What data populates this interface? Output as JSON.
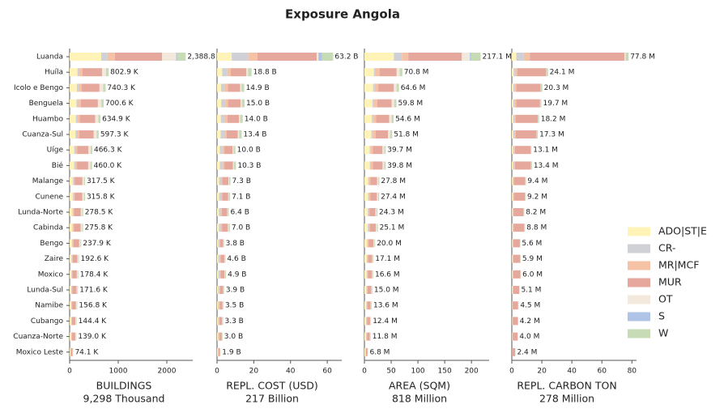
{
  "title": "Exposure Angola",
  "chart_data": [
    {
      "type": "barh",
      "xlabel": "BUILDINGS",
      "subtitle": "9,298 Thousand",
      "categories": [
        "Luanda",
        "Huíla",
        "Icolo e Bengo",
        "Benguela",
        "Huambo",
        "Cuanza-Sul",
        "Uíge",
        "Bié",
        "Malange",
        "Cunene",
        "Lunda-Norte",
        "Cabinda",
        "Bengo",
        "Zaire",
        "Moxico",
        "Lunda-Sul",
        "Namibe",
        "Cubango",
        "Cuanza-Norte",
        "Moxico Leste"
      ],
      "xlim": [
        0,
        2500
      ],
      "xticks": [
        0,
        1000,
        2000
      ],
      "series": [
        {
          "name": "ADO|ST|E",
          "color": "#fff3b8",
          "values": [
            650,
            160.6,
            148.1,
            140.1,
            127.0,
            119.5,
            93.3,
            92,
            63.5,
            63.2,
            55.7,
            55.2,
            47.6,
            38.5,
            35.7,
            34.3,
            31.4,
            28.9,
            27.8,
            14.8
          ]
        },
        {
          "name": "CR-",
          "color": "#d0d1d6",
          "values": [
            130,
            40.1,
            37.0,
            35.0,
            31.7,
            29.9,
            23.3,
            23,
            15.9,
            15.8,
            13.9,
            13.8,
            11.9,
            9.6,
            8.9,
            8.6,
            7.8,
            7.2,
            7.0,
            3.7
          ]
        },
        {
          "name": "MR|MCF",
          "color": "#f5c2a6",
          "values": [
            150,
            64.2,
            59.2,
            56.0,
            50.8,
            47.8,
            37.3,
            36.8,
            25.4,
            25.3,
            22.3,
            22.1,
            19.0,
            15.4,
            14.3,
            13.7,
            12.5,
            11.6,
            11.1,
            5.9
          ]
        },
        {
          "name": "MUR",
          "color": "#e6a79c",
          "values": [
            970,
            401.5,
            370.2,
            350.3,
            317.5,
            298.6,
            233.2,
            230,
            158.7,
            157.9,
            139.3,
            137.9,
            118.9,
            96.3,
            89.2,
            85.8,
            78.4,
            72.2,
            69.5,
            37.1
          ]
        },
        {
          "name": "OT",
          "color": "#f2e9dc",
          "values": [
            290,
            80.3,
            74.0,
            70.1,
            63.5,
            59.7,
            46.6,
            46,
            31.8,
            31.6,
            27.8,
            27.6,
            23.8,
            19.3,
            17.8,
            17.2,
            15.7,
            14.4,
            13.9,
            7.4
          ]
        },
        {
          "name": "S",
          "color": "#aec3e6",
          "values": [
            18.8,
            0,
            0,
            0,
            0,
            0,
            0,
            0,
            0,
            0,
            0,
            0,
            0,
            0,
            0,
            0,
            0,
            0,
            0,
            0
          ]
        },
        {
          "name": "W",
          "color": "#c6dbb6",
          "values": [
            180,
            56.2,
            51.8,
            49.1,
            44.4,
            41.8,
            32.6,
            32.2,
            22.2,
            22.0,
            19.5,
            19.2,
            16.7,
            13.5,
            12.5,
            12.0,
            11.0,
            10.1,
            9.7,
            5.2
          ]
        }
      ],
      "totals": [
        2388.8,
        802.9,
        740.3,
        700.6,
        634.9,
        597.3,
        466.3,
        460.0,
        317.5,
        315.8,
        278.5,
        275.8,
        237.9,
        192.6,
        178.4,
        171.6,
        156.8,
        144.4,
        139.0,
        74.1
      ],
      "total_labels": [
        "2,388.8 K",
        "802.9 K",
        "740.3 K",
        "700.6 K",
        "634.9 K",
        "597.3 K",
        "466.3 K",
        "460.0 K",
        "317.5 K",
        "315.8 K",
        "278.5 K",
        "275.8 K",
        "237.9 K",
        "192.6 K",
        "178.4 K",
        "171.6 K",
        "156.8 K",
        "144.4 K",
        "139.0 K",
        "74.1 K"
      ]
    },
    {
      "type": "barh",
      "xlabel": "REPL. COST (USD)",
      "subtitle": "217 Billion",
      "xlim": [
        0,
        67
      ],
      "xticks": [
        0,
        20,
        40,
        60
      ],
      "series": [
        {
          "color": "#fff3b8",
          "values": [
            8,
            2.8,
            2.2,
            2.3,
            2.1,
            2.0,
            1.5,
            1.5,
            1.1,
            1.1,
            1.0,
            1.0,
            0.6,
            0.7,
            0.7,
            0.6,
            0.5,
            0.5,
            0.5,
            0.3
          ]
        },
        {
          "color": "#d0d1d6",
          "values": [
            9,
            2.8,
            2.2,
            2.2,
            2.1,
            2.0,
            1.5,
            1.5,
            1.1,
            1.1,
            1.0,
            1.0,
            0.6,
            0.7,
            0.7,
            0.6,
            0.5,
            0.5,
            0.4,
            0.3
          ]
        },
        {
          "color": "#f5c2a6",
          "values": [
            5,
            1.9,
            1.5,
            1.5,
            1.4,
            1.3,
            1.0,
            1.0,
            0.7,
            0.7,
            0.6,
            0.7,
            0.4,
            0.5,
            0.5,
            0.4,
            0.4,
            0.3,
            0.3,
            0.2
          ]
        },
        {
          "color": "#e6a79c",
          "values": [
            32.2,
            8.5,
            6.7,
            6.8,
            6.3,
            6.0,
            4.5,
            4.7,
            3.3,
            3.2,
            2.9,
            3.2,
            1.7,
            2.1,
            2.2,
            1.8,
            1.6,
            1.5,
            1.4,
            0.8
          ]
        },
        {
          "color": "#f2e9dc",
          "values": [
            1,
            0.9,
            0.7,
            0.7,
            0.7,
            0.7,
            0.5,
            0.5,
            0.4,
            0.3,
            0.3,
            0.4,
            0.2,
            0.2,
            0.3,
            0.2,
            0.2,
            0.2,
            0.1,
            0.1
          ]
        },
        {
          "color": "#aec3e6",
          "values": [
            2,
            0,
            0,
            0,
            0,
            0,
            0,
            0,
            0,
            0,
            0,
            0,
            0,
            0,
            0,
            0,
            0,
            0,
            0,
            0
          ]
        },
        {
          "color": "#c6dbb6",
          "values": [
            6,
            1.9,
            1.5,
            1.5,
            1.4,
            1.4,
            1.0,
            1.1,
            0.7,
            0.7,
            0.6,
            0.7,
            0.3,
            0.4,
            0.5,
            0.3,
            0.3,
            0.3,
            0.3,
            0.2
          ]
        }
      ],
      "totals": [
        63.2,
        18.8,
        14.9,
        15.0,
        14.0,
        13.4,
        10.0,
        10.3,
        7.3,
        7.1,
        6.4,
        7.0,
        3.8,
        4.6,
        4.9,
        3.9,
        3.5,
        3.3,
        3.0,
        1.9
      ],
      "total_labels": [
        "63.2 B",
        "18.8 B",
        "14.9 B",
        "15.0 B",
        "14.0 B",
        "13.4 B",
        "10.0 B",
        "10.3 B",
        "7.3 B",
        "7.1 B",
        "6.4 B",
        "7.0 B",
        "3.8 B",
        "4.6 B",
        "4.9 B",
        "3.9 B",
        "3.5 B",
        "3.3 B",
        "3.0 B",
        "1.9 B"
      ]
    },
    {
      "type": "barh",
      "xlabel": "AREA (SQM)",
      "subtitle": "818 Million",
      "xlim": [
        0,
        230
      ],
      "xticks": [
        0,
        50,
        100,
        150,
        200
      ],
      "series": [
        {
          "color": "#fff3b8",
          "values": [
            55,
            17.7,
            16.2,
            15.0,
            13.7,
            13.0,
            9.9,
            10.0,
            7.0,
            6.9,
            6.1,
            6.3,
            5,
            4.3,
            4.2,
            3.8,
            3.4,
            3.1,
            3.0,
            1.7
          ]
        },
        {
          "color": "#d0d1d6",
          "values": [
            15,
            3.5,
            3.2,
            3.0,
            2.7,
            2.6,
            2.0,
            2.0,
            1.4,
            1.4,
            1.2,
            1.3,
            1,
            0.9,
            0.8,
            0.7,
            0.7,
            0.6,
            0.6,
            0.3
          ]
        },
        {
          "color": "#f5c2a6",
          "values": [
            12,
            7.1,
            6.5,
            6.0,
            5.5,
            5.2,
            4.0,
            4.0,
            2.8,
            2.7,
            2.4,
            2.5,
            2,
            1.7,
            1.7,
            1.5,
            1.4,
            1.2,
            1.2,
            0.7
          ]
        },
        {
          "color": "#e6a79c",
          "values": [
            100,
            31.9,
            29.1,
            26.9,
            24.5,
            23.3,
            17.9,
            17.9,
            12.5,
            12.3,
            10.9,
            11.3,
            9,
            7.7,
            7.5,
            6.8,
            6.1,
            5.6,
            5.3,
            3.1
          ]
        },
        {
          "color": "#f2e9dc",
          "values": [
            15,
            5.7,
            5.1,
            4.8,
            4.4,
            4.1,
            3.2,
            3.2,
            2.2,
            2.2,
            1.9,
            2.0,
            1.6,
            1.4,
            1.3,
            1.2,
            1.1,
            1.0,
            0.9,
            0.5
          ]
        },
        {
          "color": "#aec3e6",
          "values": [
            2,
            0,
            0,
            0,
            0,
            0,
            0,
            0,
            0,
            0,
            0,
            0,
            0,
            0,
            0,
            0,
            0,
            0,
            0,
            0
          ]
        },
        {
          "color": "#c6dbb6",
          "values": [
            18.1,
            4.9,
            4.5,
            4.1,
            3.8,
            3.6,
            2.7,
            2.7,
            1.9,
            1.9,
            1.8,
            1.7,
            1.4,
            1.1,
            1.1,
            1.0,
            0.9,
            0.9,
            0.8,
            0.5
          ]
        }
      ],
      "totals": [
        217.1,
        70.8,
        64.6,
        59.8,
        54.6,
        51.8,
        39.7,
        39.8,
        27.8,
        27.4,
        24.3,
        25.1,
        20.0,
        17.1,
        16.6,
        15.0,
        13.6,
        12.4,
        11.8,
        6.8
      ],
      "total_labels": [
        "217.1 M",
        "70.8 M",
        "64.6 M",
        "59.8 M",
        "54.6 M",
        "51.8 M",
        "39.7 M",
        "39.8 M",
        "27.8 M",
        "27.4 M",
        "24.3 M",
        "25.1 M",
        "20.0 M",
        "17.1 M",
        "16.6 M",
        "15.0 M",
        "13.6 M",
        "12.4 M",
        "11.8 M",
        "6.8 M"
      ]
    },
    {
      "type": "barh",
      "xlabel": "REPL. CARBON TON",
      "subtitle": "278 Million",
      "xlim": [
        0,
        82
      ],
      "xticks": [
        0,
        20,
        40,
        60,
        80
      ],
      "series": [
        {
          "color": "#fff3b8",
          "values": [
            3,
            1.2,
            1.0,
            1.0,
            0.9,
            0.9,
            0.7,
            0.7,
            0.5,
            0.5,
            0.4,
            0.4,
            0.3,
            0.3,
            0.3,
            0.3,
            0.2,
            0.2,
            0.2,
            0.1
          ]
        },
        {
          "color": "#d0d1d6",
          "values": [
            5,
            1.2,
            1.0,
            1.0,
            0.9,
            0.9,
            0.7,
            0.7,
            0.5,
            0.5,
            0.4,
            0.4,
            0.3,
            0.3,
            0.3,
            0.3,
            0.2,
            0.2,
            0.2,
            0.1
          ]
        },
        {
          "color": "#f5c2a6",
          "values": [
            4,
            1.2,
            1.0,
            1.0,
            0.9,
            0.9,
            0.7,
            0.7,
            0.5,
            0.5,
            0.4,
            0.4,
            0.3,
            0.3,
            0.3,
            0.3,
            0.2,
            0.2,
            0.2,
            0.1
          ]
        },
        {
          "color": "#e6a79c",
          "values": [
            63,
            19.3,
            16.2,
            15.8,
            14.6,
            13.8,
            10.5,
            10.7,
            7.5,
            7.3,
            6.6,
            7.1,
            4.5,
            4.7,
            4.8,
            4.0,
            3.6,
            3.4,
            3.2,
            1.9
          ]
        },
        {
          "color": "#f2e9dc",
          "values": [
            0.8,
            0.2,
            0.2,
            0.2,
            0.2,
            0.2,
            0.1,
            0.1,
            0.1,
            0.1,
            0.1,
            0.1,
            0,
            0.1,
            0.1,
            0,
            0.1,
            0,
            0,
            0
          ]
        },
        {
          "color": "#aec3e6",
          "values": [
            0,
            0,
            0,
            0,
            0,
            0,
            0,
            0,
            0,
            0,
            0,
            0,
            0,
            0,
            0,
            0,
            0,
            0,
            0,
            0
          ]
        },
        {
          "color": "#c6dbb6",
          "values": [
            2,
            1.0,
            0.9,
            0.7,
            0.7,
            0.6,
            0.4,
            0.5,
            0.3,
            0.3,
            0.3,
            0.4,
            0.2,
            0.2,
            0.2,
            0.2,
            0.2,
            0.2,
            0.2,
            0.2
          ]
        }
      ],
      "totals": [
        77.8,
        24.1,
        20.3,
        19.7,
        18.2,
        17.3,
        13.1,
        13.4,
        9.4,
        9.2,
        8.2,
        8.8,
        5.6,
        5.9,
        6.0,
        5.1,
        4.5,
        4.2,
        4.0,
        2.4
      ],
      "total_labels": [
        "77.8 M",
        "24.1 M",
        "20.3 M",
        "19.7 M",
        "18.2 M",
        "17.3 M",
        "13.1 M",
        "13.4 M",
        "9.4 M",
        "9.2 M",
        "8.2 M",
        "8.8 M",
        "5.6 M",
        "5.9 M",
        "6.0 M",
        "5.1 M",
        "4.5 M",
        "4.2 M",
        "4.0 M",
        "2.4 M"
      ]
    }
  ]
}
